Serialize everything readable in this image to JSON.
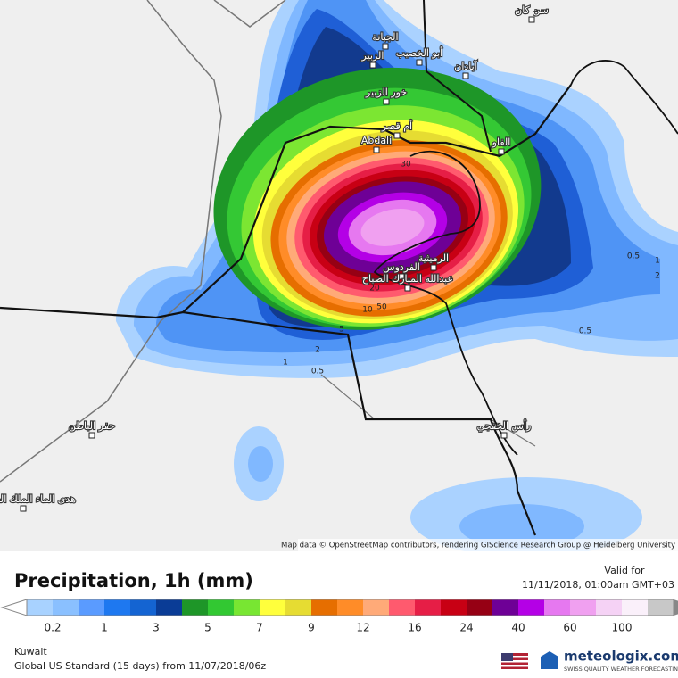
{
  "map": {
    "places": [
      "الجبانة",
      "الزبير",
      "أبو الخصيب",
      "آبادان",
      "خور الزبير",
      "أم قصر",
      "Abdali",
      "الفاو",
      "الرميثية",
      "الفردوس",
      "عبدالله المبارك الصباح",
      "حفر الباطن",
      "رأس الخفجي",
      "سن كان",
      "هدى الماء الملك العبد الله"
    ],
    "contour_labels": [
      "30",
      "20",
      "10",
      "5",
      "2",
      "1",
      "0.5",
      "0.5",
      "1",
      "2",
      "0.5",
      "50"
    ],
    "attribution": "Map data © OpenStreetMap contributors, rendering GIScience Research Group @ Heidelberg University"
  },
  "legend": {
    "title": "Precipitation, 1h (mm)",
    "valid_for": "Valid for",
    "valid_time": "11/11/2018, 01:00am GMT+03",
    "ticks": [
      "0.2",
      "1",
      "3",
      "5",
      "7",
      "9",
      "12",
      "16",
      "24",
      "40",
      "60",
      "100"
    ]
  },
  "footer": {
    "region": "Kuwait",
    "model": "Global US Standard (15 days) from 11/07/2018/06z",
    "brand": "meteologix.com",
    "tagline": "SWISS QUALITY WEATHER FORECASTING"
  }
}
